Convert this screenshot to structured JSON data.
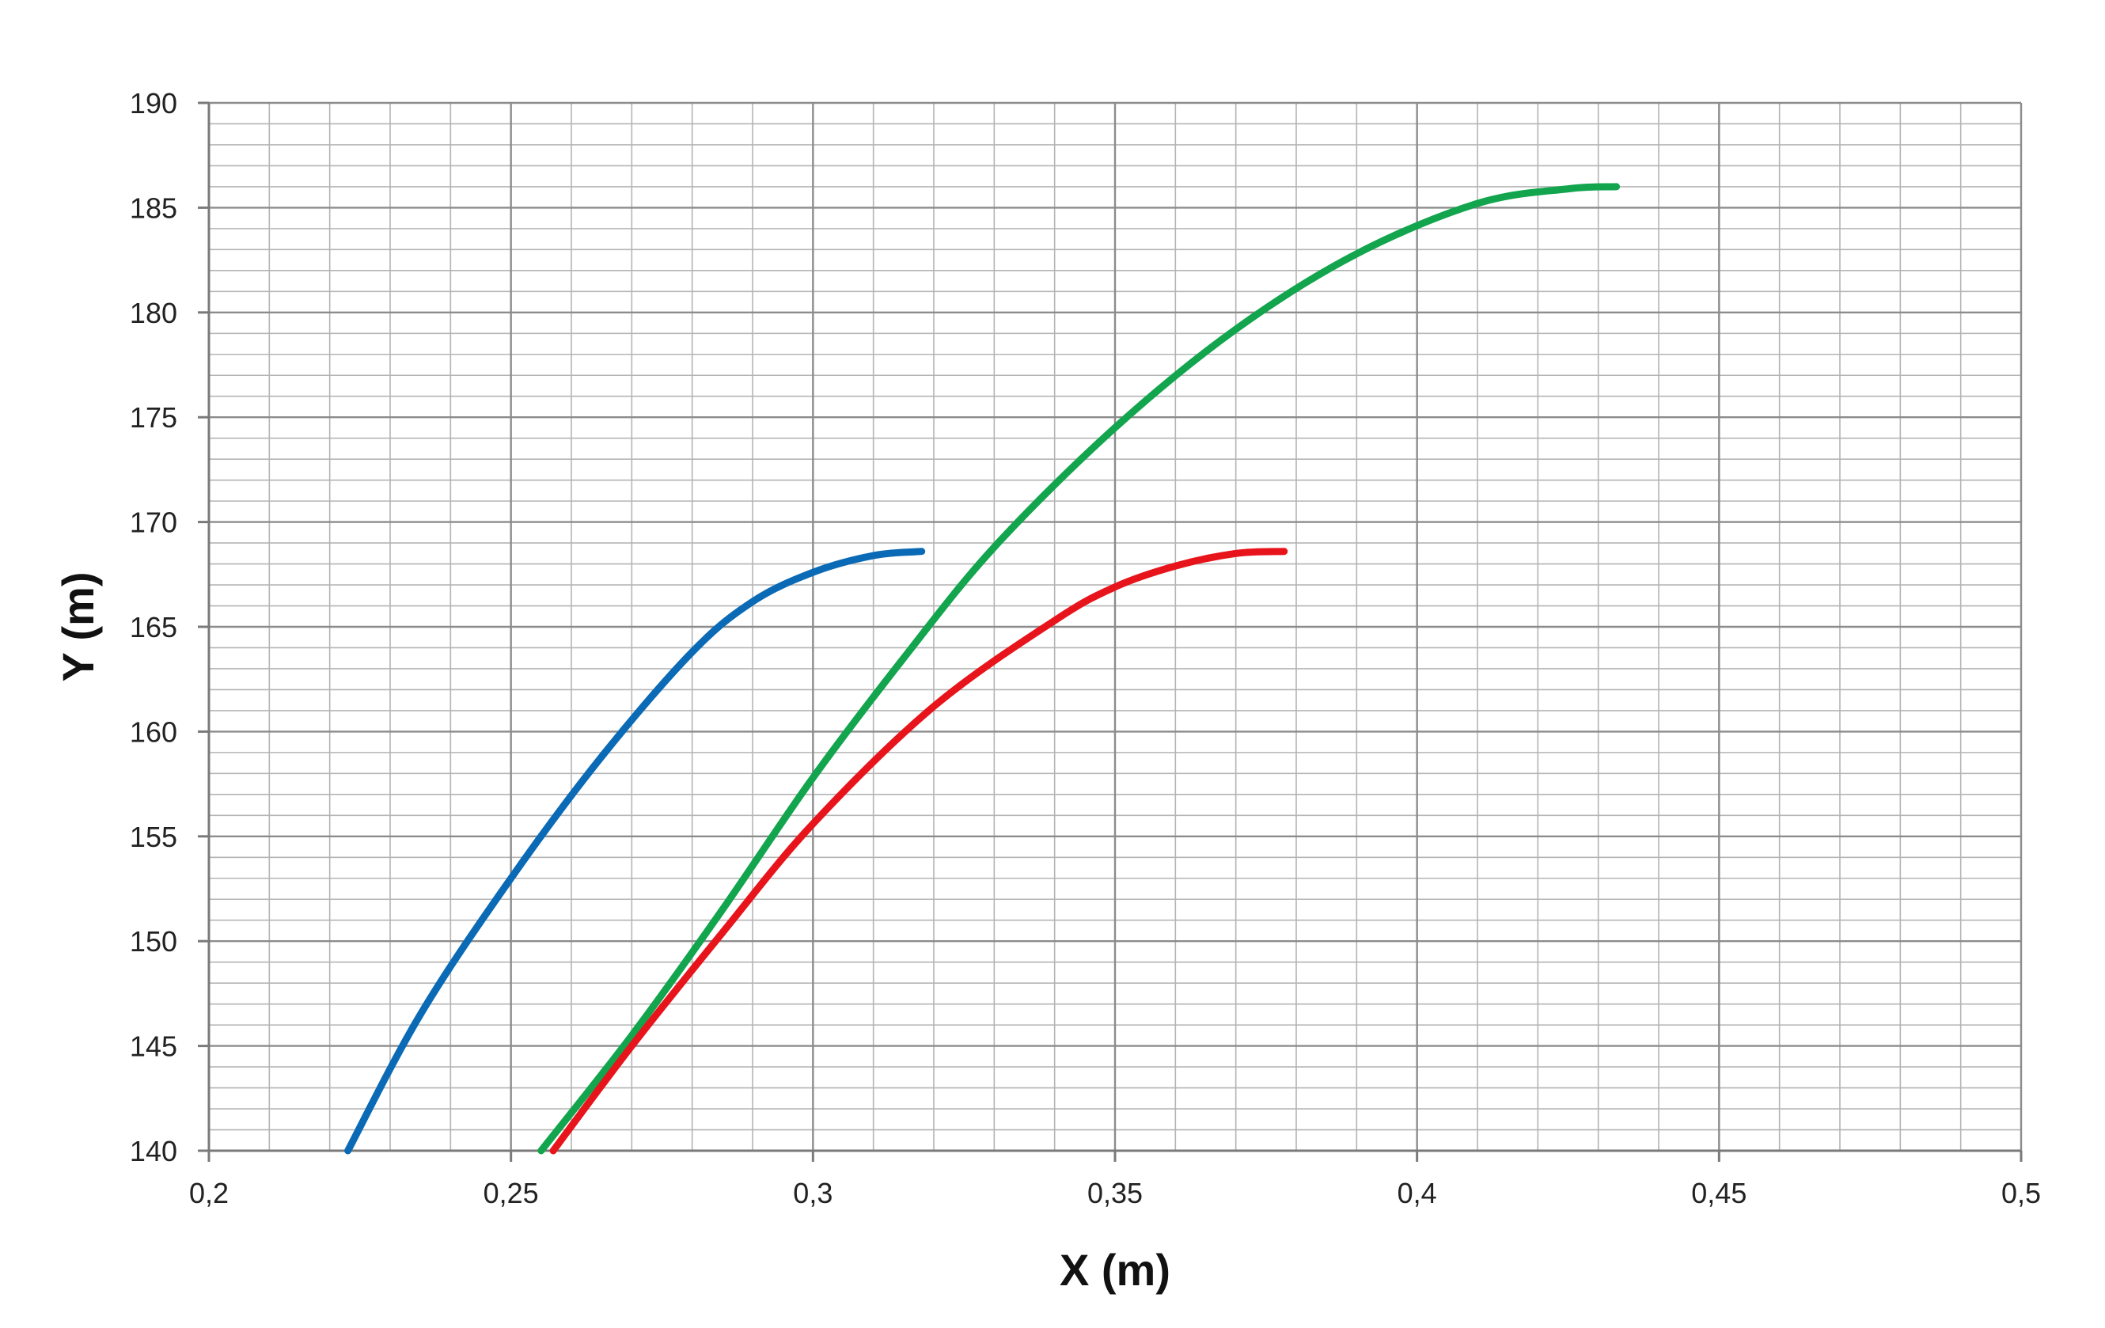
{
  "chart_data": {
    "type": "line",
    "title": "",
    "xlabel": "X (m)",
    "ylabel": "Y (m)",
    "xlim": [
      0.2,
      0.5
    ],
    "ylim": [
      140,
      190
    ],
    "x_major_step": 0.05,
    "x_minor_step": 0.01,
    "y_major_step": 5,
    "y_minor_step": 1,
    "x_tick_labels": [
      "0,2",
      "0,25",
      "0,3",
      "0,35",
      "0,4",
      "0,45",
      "0,5"
    ],
    "y_tick_labels": [
      "140",
      "145",
      "150",
      "155",
      "160",
      "165",
      "170",
      "175",
      "180",
      "185",
      "190"
    ],
    "grid": true,
    "legend": "none",
    "series": [
      {
        "color": "#0a6ab5",
        "x": [
          0.223,
          0.235,
          0.25,
          0.265,
          0.28,
          0.29,
          0.3,
          0.31,
          0.318
        ],
        "y": [
          140.0,
          146.5,
          153.0,
          158.8,
          163.8,
          166.2,
          167.6,
          168.4,
          168.6
        ]
      },
      {
        "color": "#12a54d",
        "x": [
          0.255,
          0.27,
          0.285,
          0.3,
          0.315,
          0.33,
          0.35,
          0.37,
          0.39,
          0.41,
          0.425,
          0.433
        ],
        "y": [
          140.0,
          145.5,
          151.5,
          157.8,
          163.5,
          168.8,
          174.5,
          179.2,
          182.8,
          185.2,
          185.9,
          186.0
        ]
      },
      {
        "color": "#e8141c",
        "x": [
          0.257,
          0.27,
          0.285,
          0.3,
          0.32,
          0.34,
          0.35,
          0.36,
          0.37,
          0.378
        ],
        "y": [
          140.0,
          145.0,
          150.4,
          155.6,
          161.2,
          165.3,
          166.9,
          167.9,
          168.5,
          168.6
        ]
      }
    ]
  }
}
